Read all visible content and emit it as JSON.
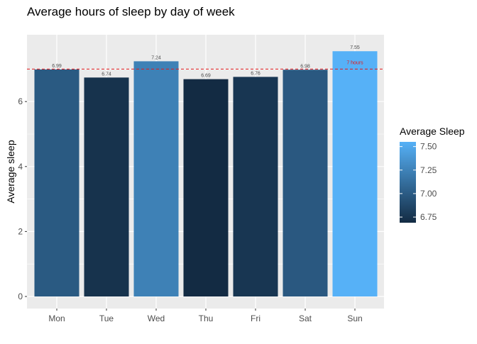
{
  "chart_data": {
    "type": "bar",
    "title": "Average hours of sleep by day of week",
    "xlabel": "",
    "ylabel": "Average sleep",
    "categories": [
      "Mon",
      "Tue",
      "Wed",
      "Thu",
      "Fri",
      "Sat",
      "Sun"
    ],
    "values": [
      6.99,
      6.74,
      7.24,
      6.69,
      6.76,
      6.98,
      7.55
    ],
    "data_labels": [
      "6.99",
      "6.74",
      "7.24",
      "6.69",
      "6.76",
      "6.98",
      "7.55"
    ],
    "ylim": [
      0,
      7.9
    ],
    "y_ticks": [
      0,
      2,
      4,
      6
    ],
    "y_tick_labels": [
      "0",
      "2",
      "4",
      "6"
    ],
    "grid": true,
    "panel_background": "#ebebeb",
    "grid_color": "#ffffff",
    "reference_line": {
      "value": 7,
      "label": "7 hours",
      "color": "#e41a1c",
      "style": "dashed"
    },
    "color_scale": {
      "title": "Average Sleep",
      "low_value": 6.69,
      "high_value": 7.55,
      "low_color": "#132b43",
      "high_color": "#56b1f7",
      "ticks": [
        6.75,
        7.0,
        7.25,
        7.5
      ],
      "tick_labels": [
        "6.75",
        "7.00",
        "7.25",
        "7.50"
      ],
      "placement": "right"
    }
  }
}
